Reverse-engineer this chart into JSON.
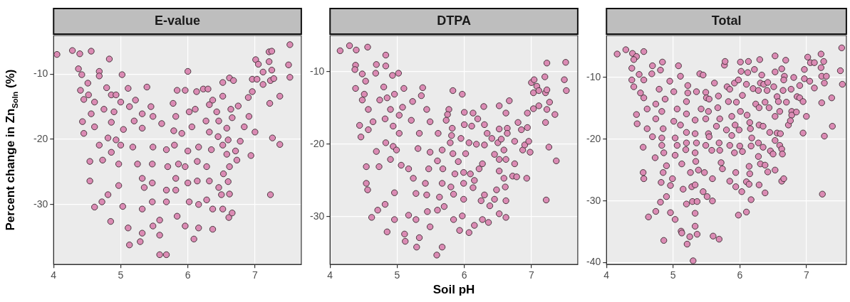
{
  "chart_data": [
    {
      "type": "scatter",
      "title": "E-value",
      "ylabel": "Percent change in Zn$_{Soln}$ (%)",
      "color": "#db8bb4",
      "marker": "circle",
      "grid": true,
      "xlim": [
        4,
        7.69
      ],
      "ylim": [
        -39.2,
        -4.1
      ],
      "xticks": [
        4,
        5,
        6,
        7
      ],
      "yticks": [
        -10,
        -20,
        -30
      ],
      "x": [
        4.05,
        4.28,
        4.39,
        4.56,
        4.37,
        4.42,
        4.4,
        4.51,
        4.52,
        4.45,
        4.61,
        4.56,
        4.61,
        4.45,
        4.43,
        4.68,
        4.68,
        4.83,
        4.79,
        4.75,
        4.86,
        4.9,
        4.86,
        4.81,
        4.93,
        4.86,
        4.54,
        4.54,
        4.68,
        4.73,
        4.72,
        4.61,
        4.81,
        4.85,
        4.93,
        5.0,
        5.02,
        5.11,
        5.13,
        5.04,
        5.0,
        4.97,
        4.97,
        5.03,
        5.11,
        5.13,
        5.29,
        5.2,
        5.22,
        5.32,
        5.32,
        5.18,
        5.25,
        5.32,
        5.35,
        5.32,
        5.32,
        5.39,
        5.45,
        5.48,
        5.48,
        5.47,
        5.47,
        5.47,
        5.48,
        5.58,
        5.68,
        5.61,
        5.68,
        5.7,
        5.68,
        5.68,
        5.58,
        5.58,
        5.78,
        5.82,
        5.84,
        5.79,
        5.8,
        5.86,
        5.82,
        5.82,
        5.84,
        5.96,
        6.0,
        6.02,
        5.91,
        6.0,
        5.96,
        6.0,
        6.02,
        5.96,
        6.09,
        6.13,
        6.11,
        6.06,
        6.16,
        6.14,
        6.14,
        6.16,
        6.16,
        6.23,
        6.3,
        6.32,
        6.27,
        6.32,
        6.35,
        6.28,
        6.32,
        6.28,
        6.37,
        6.37,
        6.37,
        6.43,
        6.45,
        6.46,
        6.52,
        6.52,
        6.52,
        6.53,
        6.46,
        6.5,
        6.52,
        6.61,
        6.62,
        6.68,
        6.64,
        6.66,
        6.58,
        6.6,
        6.58,
        6.62,
        6.6,
        6.62,
        6.66,
        6.75,
        6.78,
        6.73,
        6.71,
        6.84,
        6.9,
        6.91,
        6.96,
        6.96,
        6.94,
        7.0,
        7.01,
        7.05,
        7.03,
        7.12,
        7.12,
        7.21,
        7.25,
        7.21,
        7.25,
        7.23,
        7.28,
        7.22,
        7.26,
        7.37,
        7.37,
        7.23,
        7.52,
        7.5,
        7.52
      ],
      "values": [
        -7.0,
        -6.4,
        -6.9,
        -6.5,
        -9.2,
        -10.1,
        -12.5,
        -11.4,
        -13.2,
        -13.9,
        -14.3,
        -16.1,
        -18.1,
        -19.1,
        -17.3,
        -9.6,
        -10.3,
        -7.7,
        -12.1,
        -15.4,
        -13.2,
        -15.8,
        -17.4,
        -19.8,
        -20.1,
        -22.0,
        -23.4,
        -26.4,
        -20.9,
        -23.2,
        -29.6,
        -30.4,
        -28.5,
        -32.6,
        -13.2,
        -14.3,
        -10.1,
        -12.2,
        -15.0,
        -18.5,
        -20.9,
        -23.8,
        -27.1,
        -30.3,
        -33.6,
        -36.2,
        -35.7,
        -17.2,
        -14.0,
        -16.1,
        -18.3,
        -21.2,
        -23.8,
        -26.0,
        -27.4,
        -30.7,
        -34.4,
        -12.0,
        -15.0,
        -16.5,
        -21.2,
        -23.8,
        -26.7,
        -29.6,
        -33.3,
        -37.7,
        -37.7,
        -17.6,
        -21.6,
        -24.2,
        -27.8,
        -29.6,
        -32.4,
        -34.7,
        -14.5,
        -16.5,
        -12.5,
        -18.7,
        -20.9,
        -23.8,
        -26.0,
        -27.8,
        -31.8,
        -12.5,
        -9.6,
        -15.8,
        -19.1,
        -21.8,
        -24.2,
        -26.7,
        -29.6,
        -33.3,
        -35.3,
        -12.7,
        -15.4,
        -18.1,
        -21.2,
        -23.4,
        -26.4,
        -30.0,
        -33.6,
        -12.3,
        -12.3,
        -14.7,
        -17.2,
        -18.9,
        -21.6,
        -24.2,
        -26.4,
        -29.3,
        -30.7,
        -33.8,
        -14.0,
        -15.8,
        -19.6,
        -17.2,
        -11.3,
        -13.4,
        -20.9,
        -25.3,
        -27.4,
        -28.5,
        -30.7,
        -32.0,
        -10.6,
        -11.0,
        -15.4,
        -16.7,
        -18.3,
        -20.1,
        -22.3,
        -24.2,
        -26.5,
        -28.4,
        -31.3,
        -14.9,
        -20.3,
        -23.2,
        -21.8,
        -18.1,
        -13.6,
        -16.5,
        -10.8,
        -12.7,
        -22.5,
        -18.9,
        -7.8,
        -8.5,
        -10.8,
        -9.7,
        -11.6,
        -6.6,
        -6.5,
        -8.1,
        -9.4,
        -11.0,
        -10.7,
        -14.5,
        -19.8,
        -13.4,
        -20.8,
        -28.5,
        -5.5,
        -8.6,
        -10.5
      ]
    },
    {
      "type": "scatter",
      "title": "DTPA",
      "xlabel": "Soil pH",
      "color": "#db8bb4",
      "marker": "circle",
      "grid": true,
      "xlim": [
        4,
        7.69
      ],
      "ylim": [
        -36.6,
        -5.0
      ],
      "xticks": [
        4,
        5,
        6,
        7
      ],
      "yticks": [
        -10,
        -20,
        -30
      ],
      "x": [
        4.15,
        4.29,
        4.39,
        4.56,
        4.38,
        4.37,
        4.38,
        4.48,
        4.53,
        4.51,
        4.48,
        4.57,
        4.64,
        4.57,
        4.44,
        4.46,
        4.69,
        4.68,
        4.83,
        4.83,
        4.8,
        4.74,
        4.85,
        4.9,
        4.82,
        4.94,
        4.83,
        4.94,
        4.9,
        4.69,
        4.73,
        4.54,
        4.54,
        4.56,
        4.71,
        4.62,
        4.82,
        4.85,
        4.96,
        4.93,
        5.02,
        5.1,
        5.08,
        5.03,
        5.03,
        4.99,
        5.06,
        4.96,
        4.96,
        5.11,
        5.12,
        5.21,
        5.23,
        5.33,
        5.31,
        5.17,
        5.24,
        5.28,
        5.17,
        5.28,
        5.29,
        5.33,
        5.38,
        5.36,
        5.44,
        5.49,
        5.49,
        5.47,
        5.42,
        5.44,
        5.45,
        5.49,
        5.59,
        5.67,
        5.61,
        5.67,
        5.6,
        5.68,
        5.67,
        5.63,
        5.7,
        5.6,
        5.77,
        5.75,
        5.73,
        5.83,
        5.82,
        5.81,
        5.79,
        5.83,
        5.91,
        5.86,
        5.8,
        5.84,
        5.84,
        5.97,
        6.0,
        6.0,
        5.95,
        6.02,
        5.99,
        5.99,
        5.99,
        5.97,
        5.93,
        6.13,
        6.11,
        6.07,
        6.09,
        6.15,
        6.13,
        6.07,
        6.15,
        6.2,
        6.18,
        6.22,
        6.27,
        6.25,
        6.27,
        6.29,
        6.3,
        6.3,
        6.34,
        6.3,
        6.38,
        6.36,
        6.41,
        6.45,
        6.52,
        6.5,
        6.52,
        6.52,
        6.55,
        6.52,
        6.45,
        6.48,
        6.52,
        6.62,
        6.64,
        6.64,
        6.59,
        6.62,
        6.59,
        6.61,
        6.62,
        6.62,
        6.67,
        6.75,
        6.75,
        6.72,
        6.78,
        6.8,
        6.85,
        6.87,
        6.9,
        6.93,
        6.94,
        6.94,
        6.96,
        6.98,
        7.0,
        7.04,
        7.03,
        7.03,
        7.08,
        7.11,
        7.11,
        7.2,
        7.21,
        7.21,
        7.23,
        7.23,
        7.23,
        7.27,
        7.26,
        7.22,
        7.35,
        7.37,
        7.49,
        7.51,
        7.52
      ],
      "values": [
        -7.1,
        -6.4,
        -7.0,
        -6.6,
        -9.1,
        -9.7,
        -12.3,
        -10.3,
        -11.3,
        -13.1,
        -13.9,
        -15.2,
        -16.9,
        -18.0,
        -17.4,
        -19.0,
        -9.0,
        -10.2,
        -7.7,
        -9.2,
        -12.1,
        -13.9,
        -13.6,
        -15.2,
        -16.5,
        -17.5,
        -19.8,
        -20.3,
        -22.1,
        -21.0,
        -23.1,
        -23.1,
        -25.4,
        -26.3,
        -29.1,
        -30.1,
        -28.3,
        -32.1,
        -13.1,
        -10.5,
        -10.2,
        -12.3,
        -14.9,
        -16.0,
        -18.5,
        -20.8,
        -22.9,
        -26.7,
        -30.4,
        -32.4,
        -33.4,
        -16.7,
        -14.1,
        -18.5,
        -20.6,
        -23.4,
        -24.7,
        -26.8,
        -29.8,
        -30.4,
        -34.2,
        -32.9,
        -12.2,
        -13.3,
        -15.2,
        -16.9,
        -21.1,
        -23.4,
        -25.4,
        -27.0,
        -29.3,
        -31.4,
        -35.3,
        -34.2,
        -18.5,
        -20.8,
        -22.3,
        -23.4,
        -25.4,
        -27.3,
        -28.6,
        -29.1,
        -15.2,
        -15.9,
        -16.7,
        -12.6,
        -17.8,
        -18.8,
        -19.8,
        -21.3,
        -22.4,
        -24.1,
        -25.9,
        -26.9,
        -30.4,
        -13.1,
        -15.6,
        -17.3,
        -19.2,
        -21.3,
        -23.9,
        -25.4,
        -27.6,
        -29.9,
        -31.9,
        -15.7,
        -17.5,
        -19.8,
        -24.1,
        -25.0,
        -26.0,
        -32.2,
        -31.2,
        -16.5,
        -20.0,
        -23.4,
        -22.7,
        -27.8,
        -30.4,
        -14.8,
        -17.3,
        -20.1,
        -18.5,
        -27.0,
        -28.5,
        -30.8,
        -19.2,
        -21.4,
        -22.1,
        -19.8,
        -17.9,
        -14.7,
        -19.3,
        -23.7,
        -27.6,
        -26.3,
        -29.6,
        -15.7,
        -17.8,
        -18.5,
        -20.8,
        -22.1,
        -24.7,
        -25.9,
        -27.8,
        -30.1,
        -14.0,
        -19.6,
        -22.7,
        -24.4,
        -24.5,
        -17.0,
        -18.0,
        -20.8,
        -20.1,
        -24.7,
        -15.7,
        -17.7,
        -19.6,
        -21.1,
        -11.5,
        -11.1,
        -12.9,
        -15.1,
        -12.0,
        -12.6,
        -14.7,
        -10.7,
        -12.9,
        -17.0,
        -8.8,
        -12.5,
        -15.2,
        -14.2,
        -20.4,
        -27.7,
        -15.9,
        -22.3,
        -11.1,
        -8.7,
        -12.6
      ]
    },
    {
      "type": "scatter",
      "title": "Total",
      "color": "#db8bb4",
      "marker": "circle",
      "grid": true,
      "xlim": [
        4,
        7.6
      ],
      "ylim": [
        -40.3,
        -3.2
      ],
      "xticks": [
        4,
        5,
        6,
        7
      ],
      "yticks": [
        -10,
        -20,
        -30,
        -40
      ],
      "x": [
        4.16,
        4.29,
        4.39,
        4.45,
        4.56,
        4.41,
        4.38,
        4.38,
        4.41,
        4.49,
        4.56,
        4.51,
        4.56,
        4.45,
        4.46,
        4.61,
        4.61,
        4.69,
        4.68,
        4.84,
        4.81,
        4.79,
        4.74,
        4.83,
        4.88,
        4.74,
        4.85,
        4.69,
        4.83,
        4.83,
        4.86,
        4.73,
        4.55,
        4.55,
        4.56,
        4.9,
        4.85,
        4.82,
        4.81,
        4.74,
        4.63,
        4.9,
        4.86,
        4.96,
        5.03,
        5.08,
        5.11,
        4.95,
        5.01,
        5.06,
        5.01,
        5.11,
        5.03,
        5.06,
        5.03,
        5.13,
        4.99,
        4.96,
        5.15,
        5.2,
        5.12,
        5.13,
        5.21,
        5.25,
        5.3,
        5.22,
        5.22,
        5.2,
        5.2,
        5.2,
        5.2,
        5.19,
        5.26,
        5.28,
        5.29,
        5.33,
        5.33,
        5.36,
        5.4,
        5.45,
        5.35,
        5.42,
        5.33,
        5.33,
        5.35,
        5.33,
        5.34,
        5.38,
        5.33,
        5.36,
        5.45,
        5.51,
        5.59,
        5.6,
        5.69,
        5.49,
        5.5,
        5.54,
        5.53,
        5.49,
        5.53,
        5.54,
        5.49,
        5.58,
        5.59,
        5.47,
        5.62,
        5.68,
        5.67,
        5.7,
        5.65,
        5.69,
        5.7,
        5.72,
        5.74,
        5.77,
        5.78,
        5.81,
        5.85,
        5.83,
        5.8,
        5.85,
        5.85,
        5.88,
        5.88,
        5.93,
        5.92,
        5.94,
        5.94,
        5.92,
        5.95,
        5.98,
        6.01,
        6.02,
        6.01,
        5.99,
        6.0,
        6.04,
        6.03,
        5.98,
        6.1,
        6.04,
        6.11,
        6.13,
        6.12,
        6.15,
        6.16,
        6.18,
        6.17,
        6.15,
        6.14,
        6.1,
        6.14,
        6.1,
        6.17,
        6.2,
        6.22,
        6.24,
        6.3,
        6.28,
        6.29,
        6.29,
        6.28,
        6.28,
        6.31,
        6.29,
        6.33,
        6.31,
        6.36,
        6.38,
        6.35,
        6.35,
        6.38,
        6.38,
        6.42,
        6.41,
        6.44,
        6.42,
        6.45,
        6.46,
        6.5,
        6.53,
        6.53,
        6.51,
        6.53,
        6.53,
        6.53,
        6.56,
        6.58,
        6.56,
        6.6,
        6.61,
        6.6,
        6.63,
        6.63,
        6.66,
        6.64,
        6.63,
        6.67,
        6.66,
        6.65,
        6.69,
        6.7,
        6.73,
        6.77,
        6.78,
        6.78,
        6.76,
        6.81,
        6.85,
        6.86,
        6.9,
        6.9,
        6.95,
        6.97,
        6.97,
        6.95,
        7.0,
        7.02,
        7.06,
        7.05,
        7.12,
        7.12,
        7.22,
        7.26,
        7.22,
        7.23,
        7.27,
        7.3,
        7.23,
        7.27,
        7.24,
        7.38,
        7.39,
        7.53,
        7.51,
        7.54
      ],
      "values": [
        -6.2,
        -5.5,
        -6.1,
        -6.6,
        -5.8,
        -7.1,
        -8.5,
        -10.4,
        -11.5,
        -9.5,
        -10.4,
        -12.5,
        -13.3,
        -16.0,
        -17.5,
        -15.1,
        -18.3,
        -8.1,
        -9.4,
        -7.5,
        -8.8,
        -11.9,
        -14.3,
        -15.5,
        -13.5,
        -16.7,
        -18.3,
        -19.6,
        -19.8,
        -21.0,
        -22.2,
        -23.0,
        -21.3,
        -25.4,
        -26.4,
        -24.3,
        -25.4,
        -27.0,
        -30.2,
        -31.7,
        -32.6,
        -29.3,
        -36.4,
        -31.9,
        -33.0,
        -8.1,
        -9.8,
        -10.6,
        -12.3,
        -15.1,
        -17.1,
        -17.7,
        -19.8,
        -21.0,
        -22.6,
        -24.0,
        -26.4,
        -27.5,
        -28.1,
        -30.5,
        -34.9,
        -35.2,
        -37.0,
        -35.8,
        -39.7,
        -11.3,
        -12.5,
        -13.9,
        -15.9,
        -18.9,
        -20.6,
        -21.7,
        -25.4,
        -27.7,
        -30.1,
        -32.0,
        -34.1,
        -35.4,
        -9.4,
        -9.6,
        -12.3,
        -15.1,
        -16.9,
        -19.1,
        -20.6,
        -22.2,
        -23.6,
        -25.0,
        -27.4,
        -30.1,
        -28.5,
        -29.3,
        -30.0,
        -35.7,
        -36.2,
        -12.4,
        -13.3,
        -13.5,
        -15.5,
        -16.7,
        -19.1,
        -19.6,
        -21.0,
        -21.8,
        -26.4,
        -25.4,
        -10.9,
        -13.0,
        -14.9,
        -16.7,
        -17.9,
        -20.6,
        -21.8,
        -23.8,
        -24.8,
        -8.0,
        -7.4,
        -11.5,
        -11.9,
        -13.9,
        -18.5,
        -21.0,
        -26.8,
        -16.3,
        -19.4,
        -17.7,
        -22.2,
        -25.4,
        -27.7,
        -10.9,
        -14.0,
        -10.4,
        -7.5,
        -9.0,
        -15.5,
        -18.5,
        -21.1,
        -22.0,
        -28.5,
        -32.3,
        -11.1,
        -12.9,
        -16.1,
        -7.4,
        -9.2,
        -17.3,
        -18.3,
        -19.8,
        -21.1,
        -25.6,
        -24.4,
        -26.9,
        -27.3,
        -31.8,
        -29.8,
        -11.8,
        -8.7,
        -14.3,
        -7.1,
        -12.1,
        -14.9,
        -17.7,
        -20.6,
        -22.8,
        -24.0,
        -27.4,
        -9.6,
        -10.9,
        -11.1,
        -14.0,
        -17.9,
        -21.3,
        -24.2,
        -28.7,
        -10.8,
        -12.1,
        -14.9,
        -25.3,
        -18.9,
        -21.9,
        -22.4,
        -6.5,
        -9.1,
        -11.5,
        -16.3,
        -20.2,
        -25.0,
        -13.1,
        -13.9,
        -19.0,
        -15.5,
        -19.1,
        -21.0,
        -21.6,
        -26.8,
        -26.4,
        -22.4,
        -8.6,
        -9.8,
        -10.4,
        -12.1,
        -7.2,
        -14.0,
        -17.7,
        -11.9,
        -15.5,
        -16.1,
        -17.0,
        -10.0,
        -15.6,
        -13.1,
        -11.3,
        -13.3,
        -19.0,
        -8.7,
        -10.2,
        -13.9,
        -16.3,
        -6.7,
        -7.6,
        -10.6,
        -7.6,
        -11.7,
        -6.2,
        -7.4,
        -8.4,
        -9.8,
        -10.9,
        -9.8,
        -14.1,
        -19.5,
        -28.9,
        -13.3,
        -17.9,
        -5.2,
        -8.9,
        -11.1
      ]
    }
  ]
}
